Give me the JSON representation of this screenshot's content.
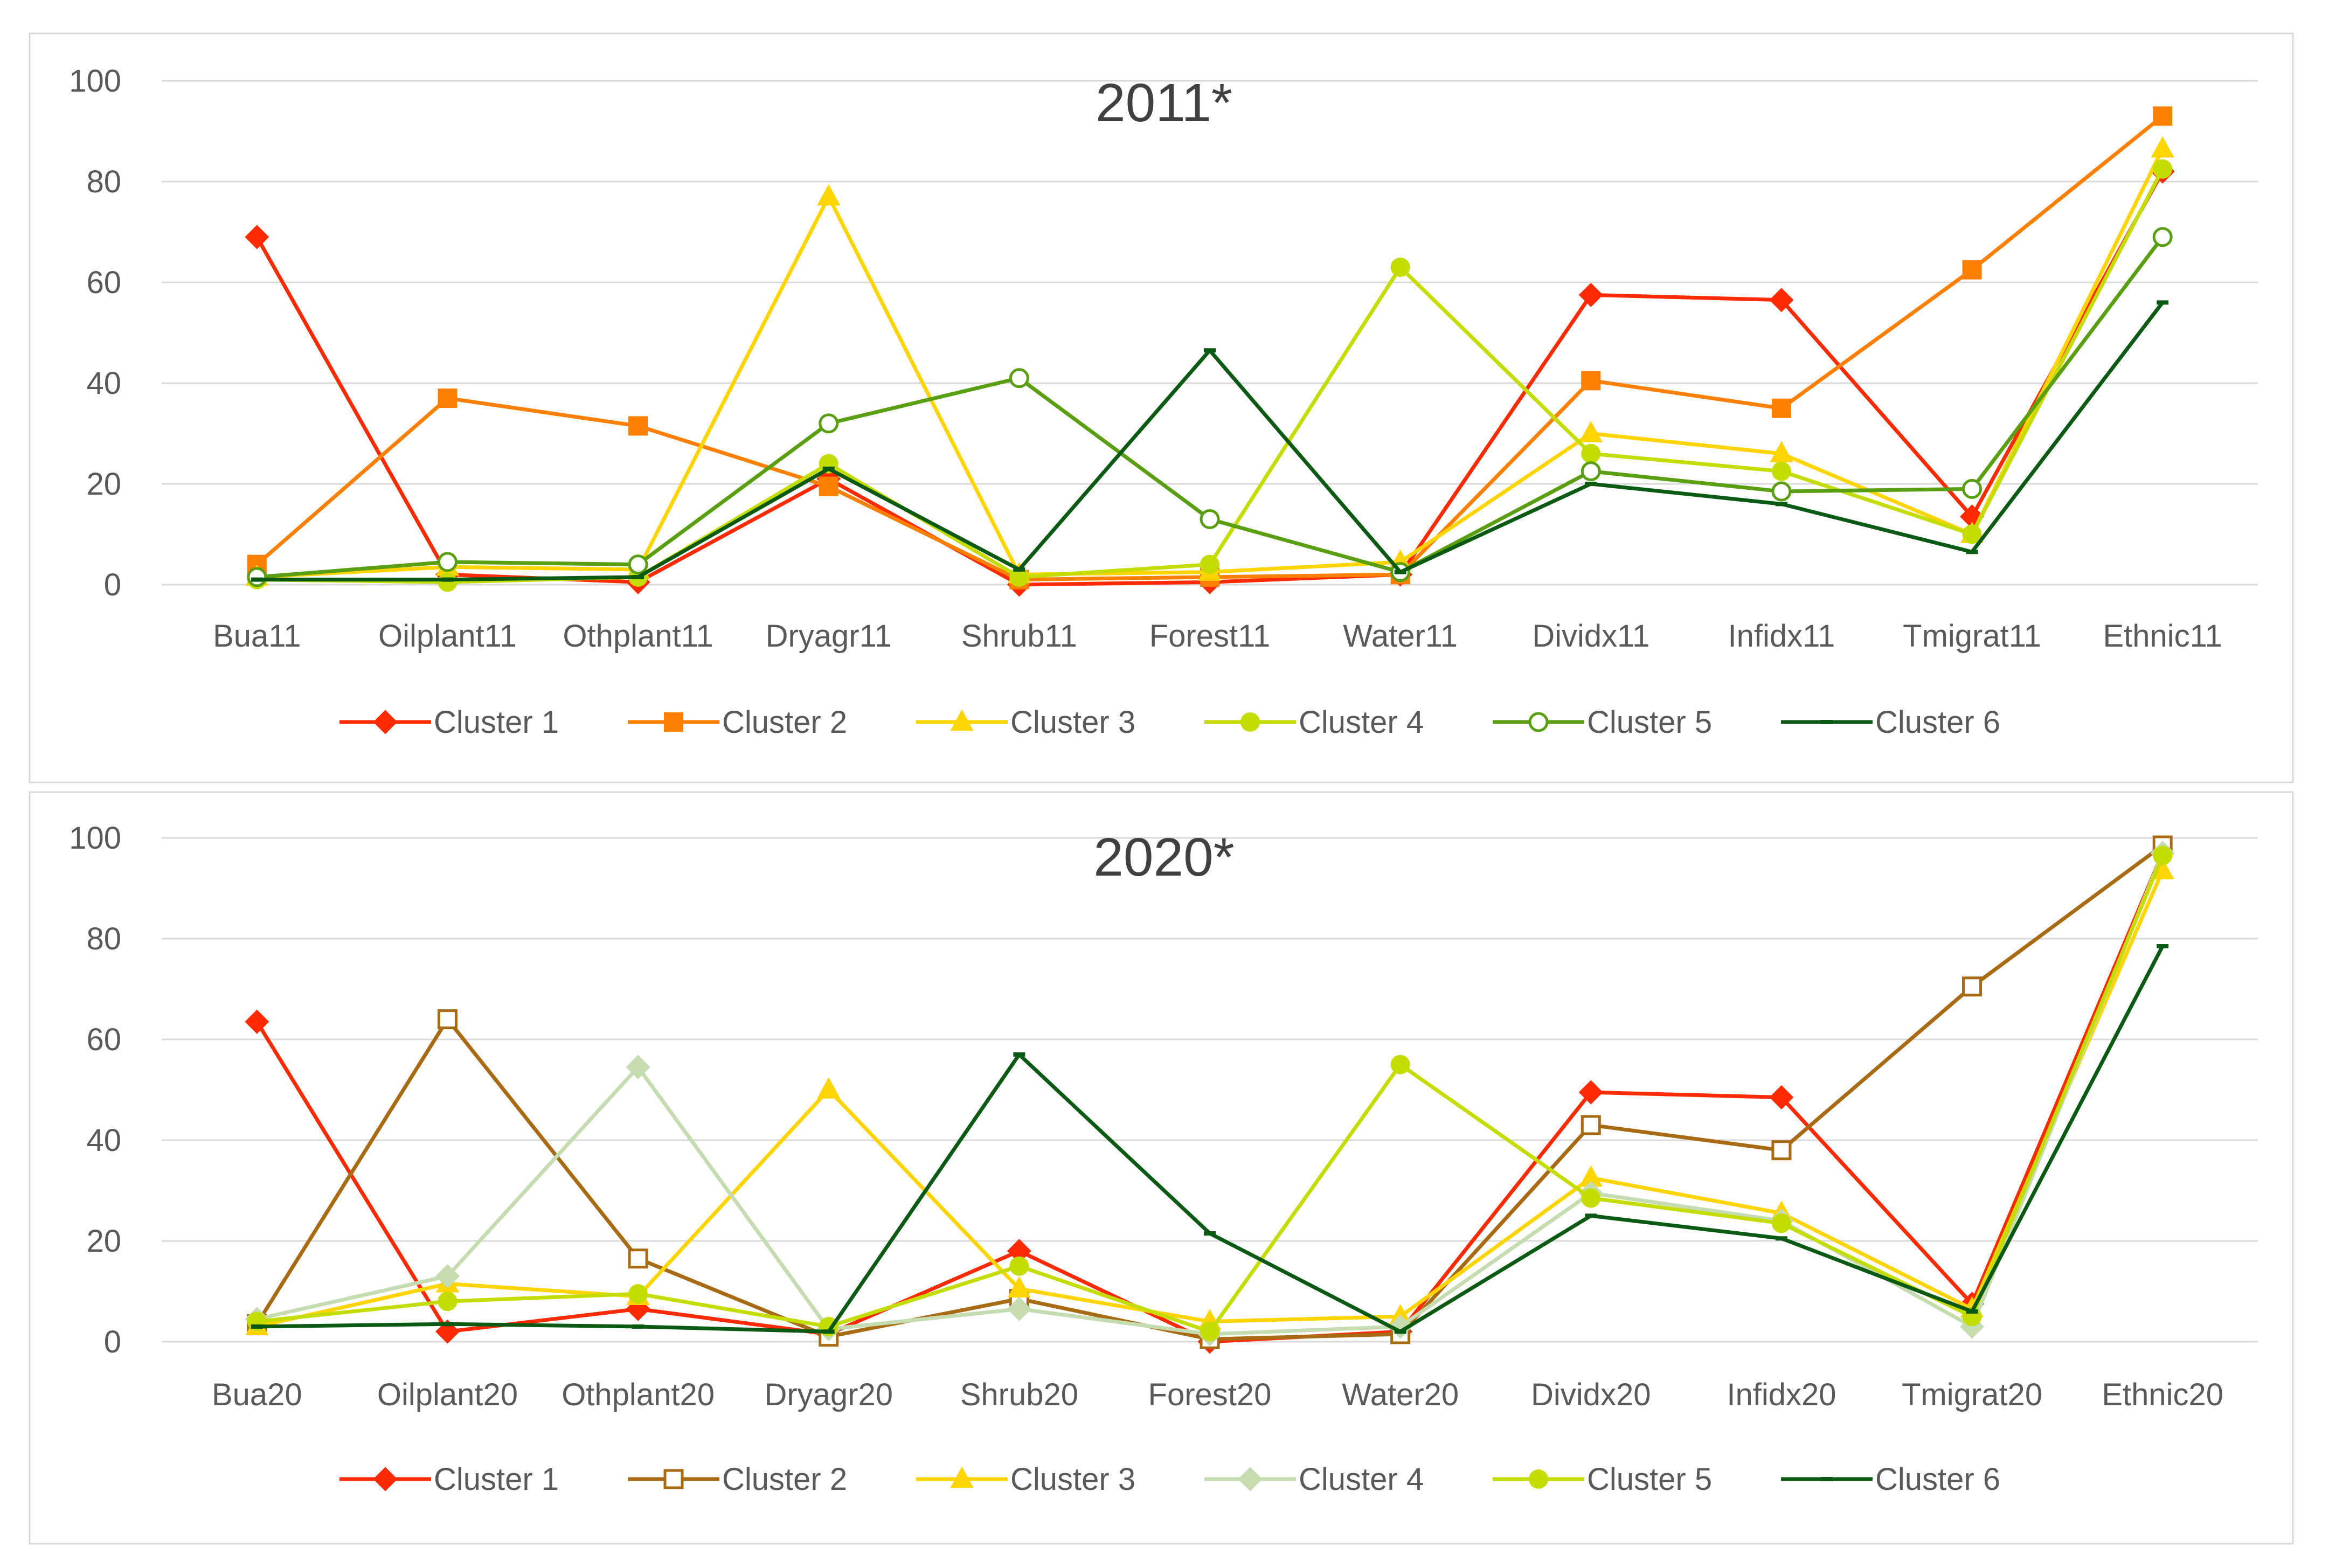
{
  "chart_data": [
    {
      "type": "line",
      "title": "2011*",
      "categories": [
        "Bua11",
        "Oilplant11",
        "Othplant11",
        "Dryagr11",
        "Shrub11",
        "Forest11",
        "Water11",
        "Dividx11",
        "Infidx11",
        "Tmigrat11",
        "Ethnic11"
      ],
      "ylim": [
        0,
        100
      ],
      "yticks": [
        0,
        20,
        40,
        60,
        80,
        100
      ],
      "grid": true,
      "legend": "bottom",
      "series": [
        {
          "name": "Cluster 1",
          "color": "#ff2a00",
          "marker": "diamond",
          "values": [
            69,
            2,
            0.5,
            21,
            0,
            0.5,
            2,
            57.5,
            56.5,
            13.5,
            82
          ]
        },
        {
          "name": "Cluster 2",
          "color": "#ff7f00",
          "marker": "square",
          "values": [
            4,
            37,
            31.5,
            19.5,
            1,
            1.5,
            2,
            40.5,
            35,
            62.5,
            93
          ]
        },
        {
          "name": "Cluster 3",
          "color": "#ffd400",
          "marker": "triangle",
          "values": [
            1.5,
            3.5,
            3,
            77,
            2,
            2.5,
            4.5,
            30,
            26,
            10,
            86.5
          ]
        },
        {
          "name": "Cluster 4",
          "color": "#c4dc00",
          "marker": "circle",
          "values": [
            1,
            0.5,
            1.5,
            24,
            1.5,
            4,
            63,
            26,
            22.5,
            10,
            82.5
          ]
        },
        {
          "name": "Cluster 5",
          "color": "#5a9e12",
          "marker": "circle-open",
          "values": [
            1.5,
            4.5,
            4,
            32,
            41,
            13,
            2.5,
            22.5,
            18.5,
            19,
            69
          ]
        },
        {
          "name": "Cluster 6",
          "color": "#0a5a14",
          "marker": "dash",
          "values": [
            1,
            1,
            1.5,
            23,
            3,
            46.5,
            2.5,
            20,
            16,
            6.5,
            56
          ]
        }
      ]
    },
    {
      "type": "line",
      "title": "2020*",
      "categories": [
        "Bua20",
        "Oilplant20",
        "Othplant20",
        "Dryagr20",
        "Shrub20",
        "Forest20",
        "Water20",
        "Dividx20",
        "Infidx20",
        "Tmigrat20",
        "Ethnic20"
      ],
      "ylim": [
        0,
        100
      ],
      "yticks": [
        0,
        20,
        40,
        60,
        80,
        100
      ],
      "grid": true,
      "legend": "bottom",
      "series": [
        {
          "name": "Cluster 1",
          "color": "#ff2a00",
          "marker": "diamond",
          "values": [
            63.5,
            2,
            6.5,
            1.5,
            18,
            0,
            2,
            49.5,
            48.5,
            7.5,
            97
          ]
        },
        {
          "name": "Cluster 2",
          "color": "#a86a12",
          "marker": "square-open",
          "values": [
            3.5,
            64,
            16.5,
            1,
            8.5,
            0.5,
            1.5,
            43,
            38,
            70.5,
            98.5
          ]
        },
        {
          "name": "Cluster 3",
          "color": "#ffd400",
          "marker": "triangle",
          "values": [
            3,
            11.5,
            9,
            50,
            10.5,
            4,
            5,
            32.5,
            25.5,
            6.5,
            93.5
          ]
        },
        {
          "name": "Cluster 4",
          "color": "#c4dcb0",
          "marker": "diamond",
          "values": [
            4.5,
            13,
            54.5,
            2.5,
            6.5,
            1.5,
            3,
            29.5,
            24,
            3,
            97
          ]
        },
        {
          "name": "Cluster 5",
          "color": "#c4dc00",
          "marker": "circle",
          "values": [
            4,
            8,
            9.5,
            3,
            15,
            2,
            55,
            28.5,
            23.5,
            5,
            96.5
          ]
        },
        {
          "name": "Cluster 6",
          "color": "#0a5a14",
          "marker": "dash",
          "values": [
            3,
            3.5,
            3,
            2,
            57,
            21.5,
            2,
            25,
            20.5,
            6,
            78.5
          ]
        }
      ]
    }
  ]
}
